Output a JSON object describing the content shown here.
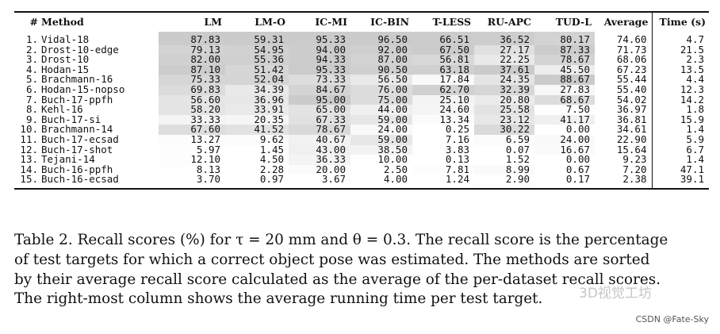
{
  "table": {
    "headers": [
      "#",
      "Method",
      "LM",
      "LM-O",
      "IC-MI",
      "IC-BIN",
      "T-LESS",
      "RU-APC",
      "TUD-L",
      "Average",
      "Time (s)"
    ],
    "rows": [
      {
        "num": "1.",
        "method": "Vidal-18",
        "values": [
          "87.83",
          "59.31",
          "95.33",
          "96.50",
          "66.51",
          "36.52",
          "80.17"
        ],
        "average": "74.60",
        "time": "4.7"
      },
      {
        "num": "2.",
        "method": "Drost-10-edge",
        "values": [
          "79.13",
          "54.95",
          "94.00",
          "92.00",
          "67.50",
          "27.17",
          "87.33"
        ],
        "average": "71.73",
        "time": "21.5"
      },
      {
        "num": "3.",
        "method": "Drost-10",
        "values": [
          "82.00",
          "55.36",
          "94.33",
          "87.00",
          "56.81",
          "22.25",
          "78.67"
        ],
        "average": "68.06",
        "time": "2.3"
      },
      {
        "num": "4.",
        "method": "Hodan-15",
        "values": [
          "87.10",
          "51.42",
          "95.33",
          "90.50",
          "63.18",
          "37.61",
          "45.50"
        ],
        "average": "67.23",
        "time": "13.5"
      },
      {
        "num": "5.",
        "method": "Brachmann-16",
        "values": [
          "75.33",
          "52.04",
          "73.33",
          "56.50",
          "17.84",
          "24.35",
          "88.67"
        ],
        "average": "55.44",
        "time": "4.4"
      },
      {
        "num": "6.",
        "method": "Hodan-15-nopso",
        "values": [
          "69.83",
          "34.39",
          "84.67",
          "76.00",
          "62.70",
          "32.39",
          "27.83"
        ],
        "average": "55.40",
        "time": "12.3"
      },
      {
        "num": "7.",
        "method": "Buch-17-ppfh",
        "values": [
          "56.60",
          "36.96",
          "95.00",
          "75.00",
          "25.10",
          "20.80",
          "68.67"
        ],
        "average": "54.02",
        "time": "14.2"
      },
      {
        "num": "8.",
        "method": "Kehl-16",
        "values": [
          "58.20",
          "33.91",
          "65.00",
          "44.00",
          "24.60",
          "25.58",
          "7.50"
        ],
        "average": "36.97",
        "time": "1.8"
      },
      {
        "num": "9.",
        "method": "Buch-17-si",
        "values": [
          "33.33",
          "20.35",
          "67.33",
          "59.00",
          "13.34",
          "23.12",
          "41.17"
        ],
        "average": "36.81",
        "time": "15.9"
      },
      {
        "num": "10.",
        "method": "Brachmann-14",
        "values": [
          "67.60",
          "41.52",
          "78.67",
          "24.00",
          "0.25",
          "30.22",
          "0.00"
        ],
        "average": "34.61",
        "time": "1.4"
      },
      {
        "num": "11.",
        "method": "Buch-17-ecsad",
        "values": [
          "13.27",
          "9.62",
          "40.67",
          "59.00",
          "7.16",
          "6.59",
          "24.00"
        ],
        "average": "22.90",
        "time": "5.9"
      },
      {
        "num": "12.",
        "method": "Buch-17-shot",
        "values": [
          "5.97",
          "1.45",
          "43.00",
          "38.50",
          "3.83",
          "0.07",
          "16.67"
        ],
        "average": "15.64",
        "time": "6.7"
      },
      {
        "num": "13.",
        "method": "Tejani-14",
        "values": [
          "12.10",
          "4.50",
          "36.33",
          "10.00",
          "0.13",
          "1.52",
          "0.00"
        ],
        "average": "9.23",
        "time": "1.4"
      },
      {
        "num": "14.",
        "method": "Buch-16-ppfh",
        "values": [
          "8.13",
          "2.28",
          "20.00",
          "2.50",
          "7.81",
          "8.99",
          "0.67"
        ],
        "average": "7.20",
        "time": "47.1"
      },
      {
        "num": "15.",
        "method": "Buch-16-ecsad",
        "values": [
          "3.70",
          "0.97",
          "3.67",
          "4.00",
          "1.24",
          "2.90",
          "0.17"
        ],
        "average": "2.38",
        "time": "39.1"
      }
    ]
  },
  "caption": {
    "lines": [
      "Table 2. Recall scores (%) for τ = 20 mm and θ = 0.3. The recall score is the percentage",
      "of test targets for which a correct object pose was estimated. The methods are sorted",
      "by their average recall score calculated as the average of the per-dataset recall scores.",
      "The right-most column shows the average running time per test target."
    ]
  },
  "watermark": "3D视觉工坊",
  "credit": "CSDN @Fate-Sky"
}
